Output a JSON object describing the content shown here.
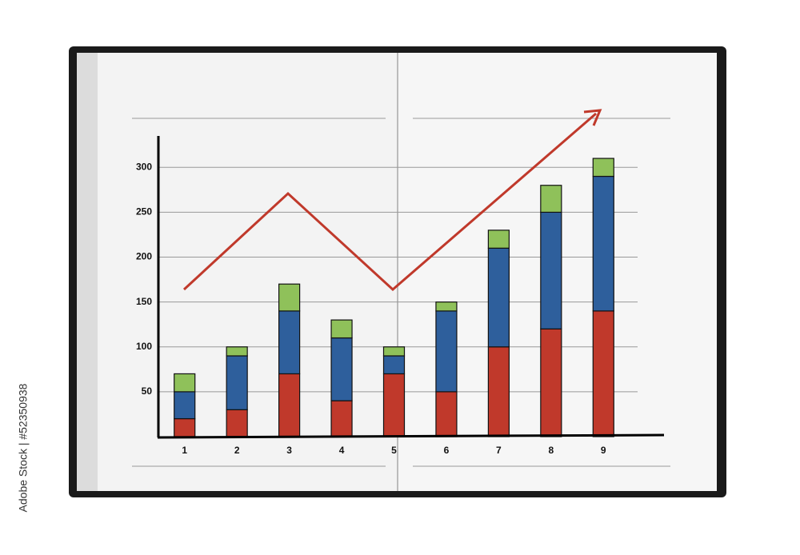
{
  "chart_data": {
    "type": "bar",
    "stacked": true,
    "categories": [
      "1",
      "2",
      "3",
      "4",
      "5",
      "6",
      "7",
      "8",
      "9"
    ],
    "series": [
      {
        "color": "#c0392b",
        "values": [
          20,
          30,
          70,
          40,
          70,
          50,
          100,
          120,
          140
        ]
      },
      {
        "color": "#2e5f9c",
        "values": [
          30,
          60,
          70,
          70,
          20,
          90,
          110,
          130,
          150
        ]
      },
      {
        "color": "#8fc15a",
        "values": [
          20,
          10,
          30,
          20,
          10,
          10,
          20,
          30,
          20
        ]
      }
    ],
    "ylim": [
      0,
      335
    ],
    "yticks": [
      50,
      100,
      150,
      200,
      250,
      300
    ],
    "grid": true
  },
  "watermark": "Adobe Stock | #52350938"
}
